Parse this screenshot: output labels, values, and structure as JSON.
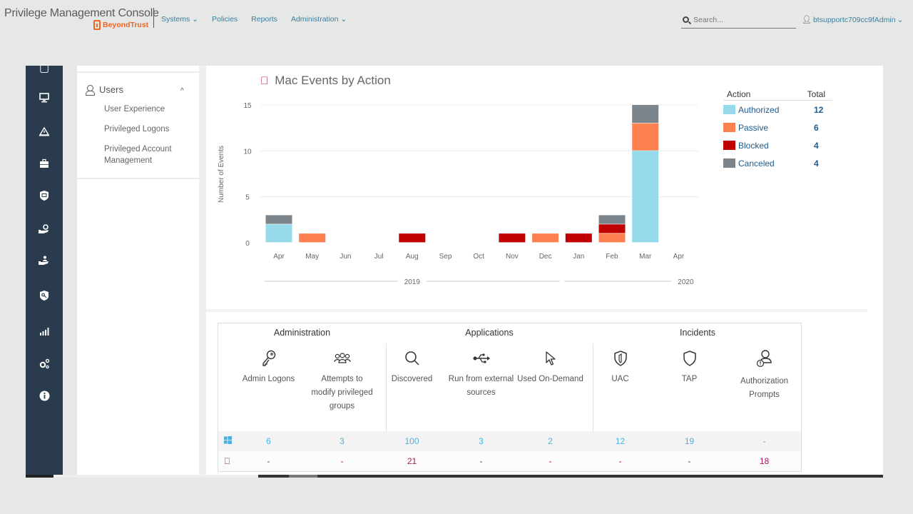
{
  "app": {
    "title": "Privilege Management Console",
    "brand": "BeyondTrust"
  },
  "nav": {
    "items": [
      {
        "label": "Systems ⌄"
      },
      {
        "label": "Policies"
      },
      {
        "label": "Reports"
      },
      {
        "label": "Administration ⌄"
      }
    ]
  },
  "search": {
    "placeholder": "Search...",
    "value": ""
  },
  "user": {
    "name": "btsupportc709cc9fAdmin",
    "caret": "⌄"
  },
  "sidebar": {
    "icons": [
      "home-icon",
      "computer-icon",
      "warning-icon",
      "briefcase-icon",
      "shield-app-icon",
      "hand-gear-icon",
      "hand-user-icon",
      "shield-key-icon",
      "analytics-icon",
      "settings-icon",
      "info-icon"
    ]
  },
  "leftpanel": {
    "section": "Users",
    "caret": "^",
    "items": [
      {
        "label": "User Experience"
      },
      {
        "label": "Privileged Logons"
      },
      {
        "label": "Privileged Account Management",
        "line1": "Privileged Account",
        "line2": "Management"
      }
    ]
  },
  "chart_data": {
    "type": "bar",
    "stacked": true,
    "title": "Mac Events by Action",
    "xlabel": "",
    "ylabel": "Number of Events",
    "ylim": [
      0,
      15
    ],
    "yticks": [
      0,
      5,
      10,
      15
    ],
    "grid": true,
    "categories": [
      "Apr",
      "May",
      "Jun",
      "Jul",
      "Aug",
      "Sep",
      "Oct",
      "Nov",
      "Dec",
      "Jan",
      "Feb",
      "Mar",
      "Apr"
    ],
    "year_groups": [
      {
        "label": "2019",
        "from": 0,
        "to": 8
      },
      {
        "label": "2020",
        "from": 9,
        "to": 12
      }
    ],
    "series": [
      {
        "name": "Authorized",
        "color": "#96dbec",
        "values": [
          2,
          0,
          0,
          0,
          0,
          0,
          0,
          0,
          0,
          0,
          0,
          10,
          0
        ]
      },
      {
        "name": "Passive",
        "color": "#fd8150",
        "values": [
          0,
          1,
          0,
          0,
          0,
          0,
          0,
          0,
          1,
          0,
          1,
          3,
          0
        ]
      },
      {
        "name": "Blocked",
        "color": "#c00000",
        "values": [
          0,
          0,
          0,
          0,
          1,
          0,
          0,
          1,
          0,
          1,
          1,
          0,
          0
        ]
      },
      {
        "name": "Canceled",
        "color": "#7c858b",
        "values": [
          1,
          0,
          0,
          0,
          0,
          0,
          0,
          0,
          0,
          0,
          1,
          2,
          0
        ]
      }
    ],
    "legend": {
      "placement": "right",
      "header_action": "Action",
      "header_total": "Total",
      "totals": [
        12,
        6,
        4,
        4
      ]
    }
  },
  "summary": {
    "groups": [
      {
        "title": "Administration"
      },
      {
        "title": "Applications"
      },
      {
        "title": "Incidents"
      }
    ],
    "metrics": [
      {
        "icon": "key-icon",
        "label": "Admin Logons",
        "windows": "6",
        "mac": "-"
      },
      {
        "icon": "group-icon",
        "label": "Attempts to modify privileged groups",
        "windows": "3",
        "mac": "-"
      },
      {
        "icon": "search-icon",
        "label": "Discovered",
        "windows": "100",
        "mac": "21"
      },
      {
        "icon": "usb-icon",
        "label": "Run from external sources",
        "windows": "3",
        "mac": "-"
      },
      {
        "icon": "cursor-icon",
        "label": "Used On-Demand",
        "windows": "2",
        "mac": "-"
      },
      {
        "icon": "uac-shield-icon",
        "label": "UAC",
        "windows": "12",
        "mac": "-"
      },
      {
        "icon": "shield-icon",
        "label": "TAP",
        "windows": "19",
        "mac": "-"
      },
      {
        "icon": "user-alert-icon",
        "label": "Authorization Prompts",
        "windows": "-",
        "mac": "18"
      }
    ],
    "rows": {
      "windows": "windows-logo",
      "mac": "apple-logo"
    }
  },
  "colors": {
    "sidebar": "#293b4d",
    "link": "#3b7e9e",
    "brand": "#f26522",
    "mac": "#a3185f",
    "windows": "#4ab0e2"
  }
}
